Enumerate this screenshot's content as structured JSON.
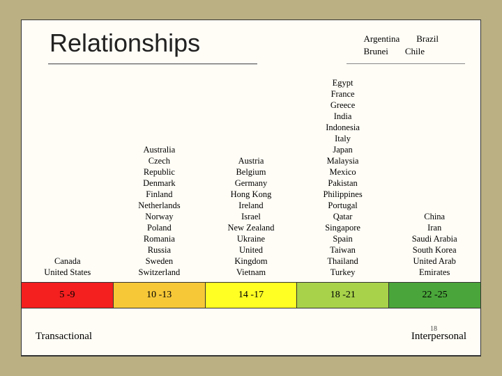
{
  "title": "Relationships",
  "extra_top": {
    "row1_left": "Argentina",
    "row1_right": "Brazil",
    "row2_left": "Brunei",
    "row2_right": "Chile"
  },
  "columns": [
    {
      "countries": [
        "Canada",
        "United States"
      ],
      "range": "5 -9",
      "color": "#f41f1f"
    },
    {
      "countries": [
        "Australia",
        "Czech",
        "Republic",
        "Denmark",
        "Finland",
        "Netherlands",
        "Norway",
        "Poland",
        "Romania",
        "Russia",
        "Sweden",
        "Switzerland"
      ],
      "range": "10 -13",
      "color": "#f6c838"
    },
    {
      "countries": [
        "Austria",
        "Belgium",
        "Germany",
        "Hong Kong",
        "Ireland",
        "Israel",
        "New Zealand",
        "Ukraine",
        "United",
        "Kingdom",
        "Vietnam"
      ],
      "range": "14 -17",
      "color": "#ffff24"
    },
    {
      "countries": [
        "Egypt",
        "France",
        "Greece",
        "India",
        "Indonesia",
        "Italy",
        "Japan",
        "Malaysia",
        "Mexico",
        "Pakistan",
        "Philippines",
        "Portugal",
        "Qatar",
        "Singapore",
        "Spain",
        "Taiwan",
        "Thailand",
        "Turkey"
      ],
      "range": "18 -21",
      "color": "#a7d24a"
    },
    {
      "countries": [
        "China",
        "Iran",
        "Saudi Arabia",
        "South Korea",
        "United Arab",
        "Emirates"
      ],
      "range": "22 -25",
      "color": "#4aa63a"
    }
  ],
  "bottom_left": "Transactional",
  "bottom_right": "Interpersonal",
  "page_num": "18"
}
